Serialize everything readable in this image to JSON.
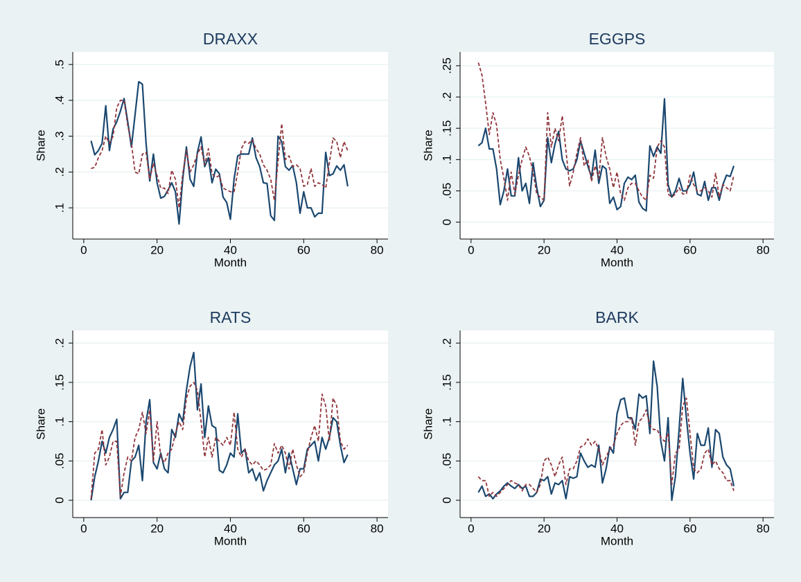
{
  "chart_data": [
    {
      "type": "line",
      "title": "DRAXX",
      "x_label": "Month",
      "y_label": "Share",
      "x": [
        2,
        3,
        4,
        5,
        6,
        7,
        8,
        9,
        10,
        11,
        12,
        13,
        14,
        15,
        16,
        17,
        18,
        19,
        20,
        21,
        22,
        23,
        24,
        25,
        26,
        27,
        28,
        29,
        30,
        31,
        32,
        33,
        34,
        35,
        36,
        37,
        38,
        39,
        40,
        41,
        42,
        43,
        44,
        45,
        46,
        47,
        48,
        49,
        50,
        51,
        52,
        53,
        54,
        55,
        56,
        57,
        58,
        59,
        60,
        61,
        62,
        63,
        64,
        65,
        66,
        67,
        68,
        69,
        70,
        71,
        72
      ],
      "series": [
        {
          "color": "#1a476f",
          "dash": false,
          "values": [
            0.287,
            0.248,
            0.26,
            0.28,
            0.385,
            0.26,
            0.32,
            0.34,
            0.37,
            0.405,
            0.34,
            0.27,
            0.36,
            0.452,
            0.445,
            0.28,
            0.175,
            0.25,
            0.17,
            0.127,
            0.132,
            0.15,
            0.17,
            0.145,
            0.055,
            0.18,
            0.27,
            0.18,
            0.16,
            0.255,
            0.298,
            0.215,
            0.24,
            0.17,
            0.208,
            0.195,
            0.13,
            0.115,
            0.068,
            0.18,
            0.245,
            0.25,
            0.25,
            0.25,
            0.295,
            0.24,
            0.215,
            0.17,
            0.168,
            0.078,
            0.065,
            0.3,
            0.285,
            0.215,
            0.205,
            0.218,
            0.17,
            0.085,
            0.145,
            0.1,
            0.1,
            0.075,
            0.085,
            0.085,
            0.255,
            0.19,
            0.195,
            0.217,
            0.205,
            0.22,
            0.16
          ]
        },
        {
          "color": "#90353b",
          "dash": true,
          "values": [
            0.21,
            0.213,
            0.24,
            0.26,
            0.3,
            0.28,
            0.3,
            0.38,
            0.4,
            0.4,
            0.33,
            0.28,
            0.2,
            0.195,
            0.25,
            0.255,
            0.18,
            0.225,
            0.19,
            0.155,
            0.155,
            0.14,
            0.205,
            0.18,
            0.1,
            0.195,
            0.26,
            0.2,
            0.22,
            0.25,
            0.27,
            0.22,
            0.265,
            0.195,
            0.185,
            0.19,
            0.155,
            0.15,
            0.145,
            0.145,
            0.2,
            0.265,
            0.285,
            0.28,
            0.29,
            0.265,
            0.25,
            0.22,
            0.205,
            0.18,
            0.12,
            0.23,
            0.335,
            0.235,
            0.245,
            0.215,
            0.22,
            0.21,
            0.16,
            0.165,
            0.21,
            0.16,
            0.17,
            0.165,
            0.155,
            0.225,
            0.295,
            0.285,
            0.24,
            0.285,
            0.26
          ]
        }
      ],
      "xlim": [
        -3,
        83
      ],
      "xticks": [
        0,
        20,
        40,
        60,
        80
      ],
      "ylim": [
        0.013,
        0.535
      ],
      "yticks": [
        {
          "value": 0.1,
          "label": ".1"
        },
        {
          "value": 0.2,
          "label": ".2"
        },
        {
          "value": 0.3,
          "label": ".3"
        },
        {
          "value": 0.4,
          "label": ".4"
        },
        {
          "value": 0.5,
          "label": ".5"
        }
      ],
      "grid": true
    },
    {
      "type": "line",
      "title": "EGGPS",
      "x_label": "Month",
      "y_label": "Share",
      "x": [
        2,
        3,
        4,
        5,
        6,
        7,
        8,
        9,
        10,
        11,
        12,
        13,
        14,
        15,
        16,
        17,
        18,
        19,
        20,
        21,
        22,
        23,
        24,
        25,
        26,
        27,
        28,
        29,
        30,
        31,
        32,
        33,
        34,
        35,
        36,
        37,
        38,
        39,
        40,
        41,
        42,
        43,
        44,
        45,
        46,
        47,
        48,
        49,
        50,
        51,
        52,
        53,
        54,
        55,
        56,
        57,
        58,
        59,
        60,
        61,
        62,
        63,
        64,
        65,
        66,
        67,
        68,
        69,
        70,
        71,
        72
      ],
      "series": [
        {
          "color": "#1a476f",
          "dash": false,
          "values": [
            0.122,
            0.127,
            0.15,
            0.117,
            0.117,
            0.085,
            0.028,
            0.05,
            0.085,
            0.042,
            0.042,
            0.103,
            0.05,
            0.062,
            0.03,
            0.095,
            0.055,
            0.025,
            0.035,
            0.135,
            0.095,
            0.125,
            0.145,
            0.1,
            0.085,
            0.082,
            0.085,
            0.1,
            0.13,
            0.11,
            0.09,
            0.072,
            0.115,
            0.062,
            0.09,
            0.085,
            0.03,
            0.04,
            0.02,
            0.025,
            0.062,
            0.072,
            0.068,
            0.075,
            0.032,
            0.022,
            0.018,
            0.122,
            0.105,
            0.12,
            0.11,
            0.197,
            0.06,
            0.04,
            0.05,
            0.07,
            0.05,
            0.05,
            0.06,
            0.08,
            0.045,
            0.042,
            0.065,
            0.035,
            0.055,
            0.055,
            0.035,
            0.06,
            0.075,
            0.073,
            0.09
          ]
        },
        {
          "color": "#90353b",
          "dash": true,
          "values": [
            0.255,
            0.235,
            0.19,
            0.14,
            0.175,
            0.155,
            0.1,
            0.07,
            0.035,
            0.08,
            0.045,
            0.075,
            0.1,
            0.12,
            0.105,
            0.08,
            0.045,
            0.04,
            0.035,
            0.175,
            0.12,
            0.15,
            0.13,
            0.17,
            0.115,
            0.058,
            0.08,
            0.11,
            0.135,
            0.09,
            0.1,
            0.065,
            0.09,
            0.07,
            0.135,
            0.105,
            0.085,
            0.055,
            0.08,
            0.045,
            0.035,
            0.055,
            0.062,
            0.062,
            0.05,
            0.04,
            0.035,
            0.075,
            0.07,
            0.12,
            0.13,
            0.12,
            0.045,
            0.04,
            0.045,
            0.055,
            0.045,
            0.045,
            0.075,
            0.06,
            0.05,
            0.05,
            0.055,
            0.05,
            0.04,
            0.078,
            0.04,
            0.06,
            0.055,
            0.05,
            0.075
          ]
        }
      ],
      "xlim": [
        -3,
        83
      ],
      "xticks": [
        0,
        20,
        40,
        60,
        80
      ],
      "ylim": [
        -0.027,
        0.272
      ],
      "yticks": [
        0,
        {
          "value": 0.05,
          "label": ".05"
        },
        {
          "value": 0.1,
          "label": ".1"
        },
        {
          "value": 0.15,
          "label": ".15"
        },
        {
          "value": 0.2,
          "label": ".2"
        },
        {
          "value": 0.25,
          "label": ".25"
        }
      ],
      "grid": true
    },
    {
      "type": "line",
      "title": "RATS",
      "x_label": "Month",
      "y_label": "Share",
      "x": [
        2,
        3,
        4,
        5,
        6,
        7,
        8,
        9,
        10,
        11,
        12,
        13,
        14,
        15,
        16,
        17,
        18,
        19,
        20,
        21,
        22,
        23,
        24,
        25,
        26,
        27,
        28,
        29,
        30,
        31,
        32,
        33,
        34,
        35,
        36,
        37,
        38,
        39,
        40,
        41,
        42,
        43,
        44,
        45,
        46,
        47,
        48,
        49,
        50,
        51,
        52,
        53,
        54,
        55,
        56,
        57,
        58,
        59,
        60,
        61,
        62,
        63,
        64,
        65,
        66,
        67,
        68,
        69,
        70,
        71,
        72
      ],
      "series": [
        {
          "color": "#1a476f",
          "dash": false,
          "values": [
            0,
            0.03,
            0.05,
            0.075,
            0.06,
            0.08,
            0.09,
            0.103,
            0.002,
            0.01,
            0.01,
            0.05,
            0.055,
            0.07,
            0.025,
            0.1,
            0.128,
            0.048,
            0.04,
            0.06,
            0.04,
            0.035,
            0.09,
            0.08,
            0.11,
            0.1,
            0.14,
            0.17,
            0.188,
            0.115,
            0.148,
            0.08,
            0.12,
            0.095,
            0.092,
            0.038,
            0.035,
            0.045,
            0.06,
            0.055,
            0.11,
            0.06,
            0.065,
            0.035,
            0.04,
            0.025,
            0.035,
            0.012,
            0.025,
            0.035,
            0.045,
            0.05,
            0.065,
            0.035,
            0.06,
            0.04,
            0.02,
            0.04,
            0.04,
            0.065,
            0.07,
            0.075,
            0.05,
            0.08,
            0.065,
            0.08,
            0.105,
            0.1,
            0.07,
            0.048,
            0.058
          ]
        },
        {
          "color": "#90353b",
          "dash": true,
          "values": [
            0.002,
            0.06,
            0.065,
            0.09,
            0.045,
            0.055,
            0.075,
            0.075,
            0.005,
            0.035,
            0.055,
            0.05,
            0.08,
            0.09,
            0.112,
            0.085,
            0.115,
            0.05,
            0.1,
            0.055,
            0.048,
            0.06,
            0.065,
            0.085,
            0.1,
            0.09,
            0.13,
            0.145,
            0.15,
            0.14,
            0.1,
            0.055,
            0.08,
            0.055,
            0.08,
            0.075,
            0.07,
            0.08,
            0.07,
            0.112,
            0.065,
            0.055,
            0.065,
            0.05,
            0.045,
            0.05,
            0.045,
            0.038,
            0.04,
            0.045,
            0.072,
            0.06,
            0.07,
            0.06,
            0.04,
            0.065,
            0.045,
            0.03,
            0.035,
            0.06,
            0.08,
            0.095,
            0.075,
            0.135,
            0.12,
            0.075,
            0.13,
            0.12,
            0.075,
            0.065,
            0.07
          ]
        }
      ],
      "xlim": [
        -3,
        83
      ],
      "xticks": [
        0,
        20,
        40,
        60,
        80
      ],
      "ylim": [
        -0.022,
        0.216
      ],
      "yticks": [
        0,
        {
          "value": 0.05,
          "label": ".05"
        },
        {
          "value": 0.1,
          "label": ".1"
        },
        {
          "value": 0.15,
          "label": ".15"
        },
        {
          "value": 0.2,
          "label": ".2"
        }
      ],
      "grid": true
    },
    {
      "type": "line",
      "title": "BARK",
      "x_label": "Month",
      "y_label": "Share",
      "x": [
        2,
        3,
        4,
        5,
        6,
        7,
        8,
        9,
        10,
        11,
        12,
        13,
        14,
        15,
        16,
        17,
        18,
        19,
        20,
        21,
        22,
        23,
        24,
        25,
        26,
        27,
        28,
        29,
        30,
        31,
        32,
        33,
        34,
        35,
        36,
        37,
        38,
        39,
        40,
        41,
        42,
        43,
        44,
        45,
        46,
        47,
        48,
        49,
        50,
        51,
        52,
        53,
        54,
        55,
        56,
        57,
        58,
        59,
        60,
        61,
        62,
        63,
        64,
        65,
        66,
        67,
        68,
        69,
        70,
        71,
        72
      ],
      "series": [
        {
          "color": "#1a476f",
          "dash": false,
          "values": [
            0.01,
            0.018,
            0.005,
            0.008,
            0.002,
            0.008,
            0.012,
            0.018,
            0.022,
            0.018,
            0.015,
            0.02,
            0.015,
            0.018,
            0.005,
            0.005,
            0.01,
            0.027,
            0.025,
            0.03,
            0.008,
            0.022,
            0.02,
            0.025,
            0.002,
            0.03,
            0.028,
            0.03,
            0.06,
            0.05,
            0.042,
            0.045,
            0.042,
            0.07,
            0.022,
            0.04,
            0.068,
            0.06,
            0.11,
            0.128,
            0.13,
            0.105,
            0.105,
            0.09,
            0.135,
            0.13,
            0.133,
            0.085,
            0.177,
            0.145,
            0.075,
            0.05,
            0.105,
            0,
            0.03,
            0.09,
            0.155,
            0.105,
            0.06,
            0.027,
            0.085,
            0.07,
            0.07,
            0.092,
            0.042,
            0.09,
            0.085,
            0.055,
            0.045,
            0.04,
            0.018
          ]
        },
        {
          "color": "#90353b",
          "dash": true,
          "values": [
            0.03,
            0.025,
            0.025,
            0.005,
            0.01,
            0.005,
            0.01,
            0.015,
            0.02,
            0.025,
            0.022,
            0.02,
            0.012,
            0.02,
            0.02,
            0.015,
            0.01,
            0.02,
            0.05,
            0.055,
            0.045,
            0.03,
            0.045,
            0.055,
            0.02,
            0.04,
            0.04,
            0.05,
            0.068,
            0.07,
            0.078,
            0.07,
            0.075,
            0.065,
            0.045,
            0.055,
            0.065,
            0.07,
            0.085,
            0.095,
            0.1,
            0.1,
            0.105,
            0.07,
            0.1,
            0.105,
            0.115,
            0.095,
            0.09,
            0.09,
            0.08,
            0.075,
            0.085,
            0.02,
            0.06,
            0.065,
            0.12,
            0.13,
            0.085,
            0.04,
            0.035,
            0.04,
            0.06,
            0.065,
            0.045,
            0.05,
            0.04,
            0.035,
            0.025,
            0.025,
            0.012
          ]
        }
      ],
      "xlim": [
        -3,
        83
      ],
      "xticks": [
        0,
        20,
        40,
        60,
        80
      ],
      "ylim": [
        -0.022,
        0.216
      ],
      "yticks": [
        0,
        {
          "value": 0.05,
          "label": ".05"
        },
        {
          "value": 0.1,
          "label": ".1"
        },
        {
          "value": 0.15,
          "label": ".15"
        },
        {
          "value": 0.2,
          "label": ".2"
        }
      ],
      "grid": true
    }
  ]
}
